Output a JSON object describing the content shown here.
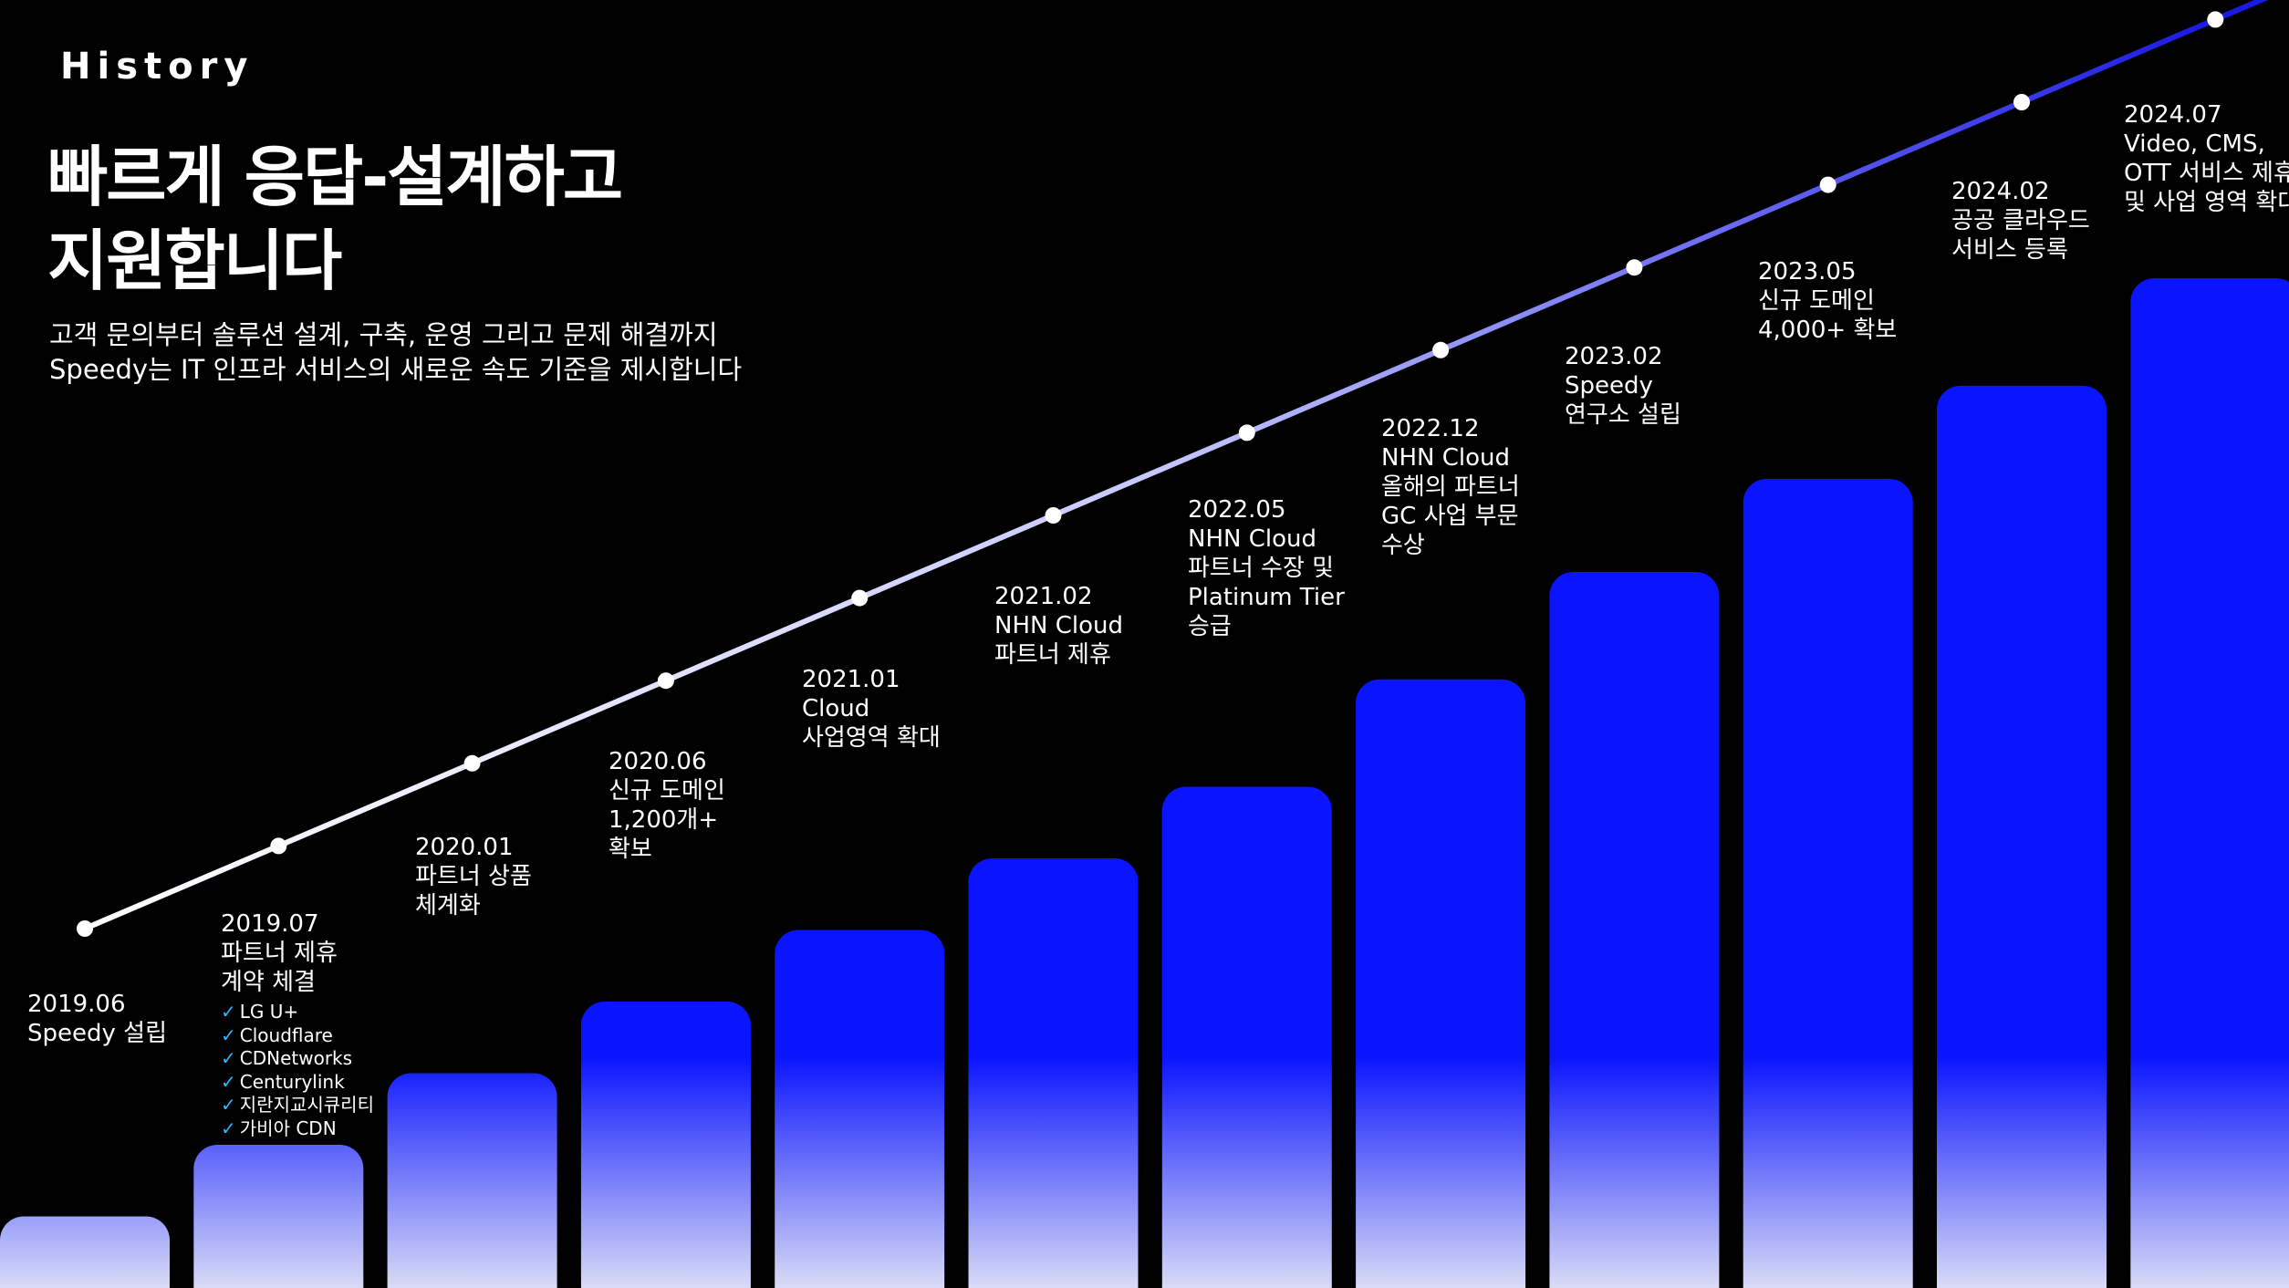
{
  "header": {
    "eyebrow": "History",
    "headline": [
      "빠르게 응답-설계하고",
      "지원합니다"
    ],
    "subtitle": [
      "고객 문의부터 솔루션 설계, 구축, 운영 그리고 문제 해결까지",
      "Speedy는 IT 인프라 서비스의 새로운 속도 기준을 제시합니다"
    ]
  },
  "milestones": [
    {
      "date": "2019.06",
      "lines": [
        "Speedy 설립"
      ]
    },
    {
      "date": "2019.07",
      "lines": [
        "파트너 제휴",
        "계약 체결"
      ],
      "partners": [
        "LG U+",
        "Cloudflare",
        "CDNetworks",
        "Centurylink",
        "지란지교시큐리티",
        "가비아 CDN"
      ]
    },
    {
      "date": "2020.01",
      "lines": [
        "파트너 상품",
        "체계화"
      ]
    },
    {
      "date": "2020.06",
      "lines": [
        "신규 도메인",
        "1,200개+",
        "확보"
      ]
    },
    {
      "date": "2021.01",
      "lines": [
        "Cloud",
        "사업영역 확대"
      ]
    },
    {
      "date": "2021.02",
      "lines": [
        "NHN Cloud",
        "파트너 제휴"
      ]
    },
    {
      "date": "2022.05",
      "lines": [
        "NHN Cloud",
        "파트너 수장 및",
        "Platinum Tier",
        "승급"
      ]
    },
    {
      "date": "2022.12",
      "lines": [
        "NHN Cloud",
        "올해의 파트너",
        "GC 사업 부문",
        "수상"
      ]
    },
    {
      "date": "2023.02",
      "lines": [
        "Speedy",
        "연구소 설립"
      ]
    },
    {
      "date": "2023.05",
      "lines": [
        "신규 도메인",
        "4,000+ 확보"
      ]
    },
    {
      "date": "2024.02",
      "lines": [
        "공공 클라우드",
        "서비스 등록"
      ]
    },
    {
      "date": "2024.07",
      "lines": [
        "Video, CMS,",
        "OTT 서비스 제휴",
        "및 사업 영역 확대"
      ]
    }
  ],
  "chart_data": {
    "type": "bar",
    "bar_values": [
      1,
      2,
      3,
      4,
      5,
      6,
      7,
      8.5,
      10,
      11.3,
      12.6,
      14.1
    ],
    "trend_points": [
      0,
      1,
      2,
      3,
      4,
      5,
      6,
      7,
      8,
      9,
      10,
      11,
      12
    ],
    "colors": {
      "bar_top": "#0a14ff",
      "bar_bottom": "#d9dbf6",
      "line_start": "#ffffff",
      "line_end": "#1a1ae6"
    }
  }
}
